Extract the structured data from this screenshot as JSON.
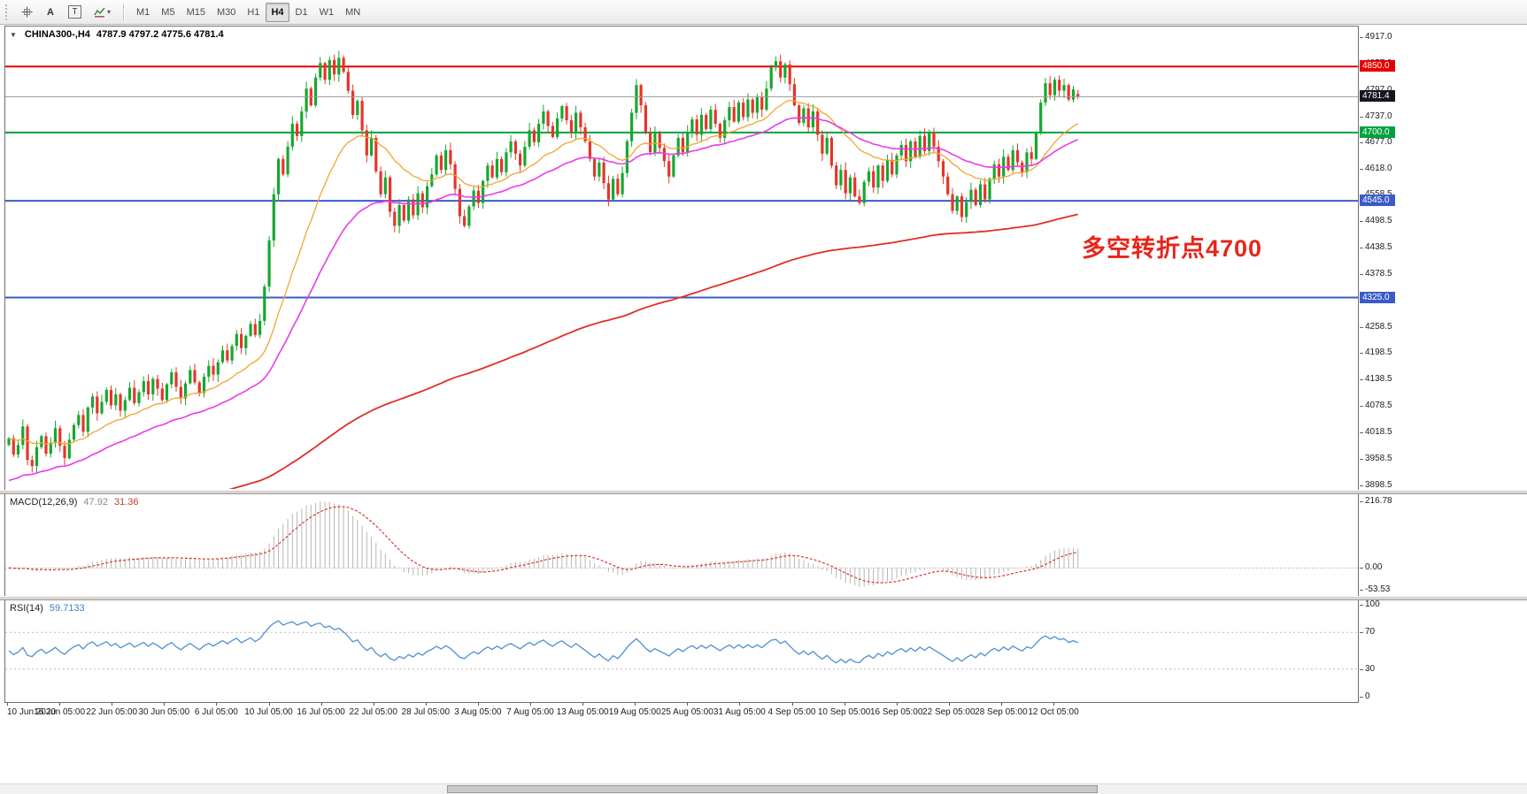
{
  "toolbar": {
    "tools": [
      {
        "name": "crosshair-icon"
      },
      {
        "name": "label-tool",
        "label": "A"
      },
      {
        "name": "text-tool",
        "label": "T"
      },
      {
        "name": "indicators-icon",
        "caret": "▾"
      }
    ],
    "timeframes": [
      "M1",
      "M5",
      "M15",
      "M30",
      "H1",
      "H4",
      "D1",
      "W1",
      "MN"
    ],
    "active_timeframe": "H4"
  },
  "chart": {
    "collapse_arrow": "▼",
    "title_symbol": "CHINA300-,H4",
    "title_ohlc": "4787.9 4797.2 4775.6 4781.4",
    "annotation": {
      "text": "多空转折点4700",
      "color": "#e8251a"
    },
    "price_axis_labels": [
      "4917.0",
      "4857.0",
      "4797.0",
      "4737.0",
      "4677.0",
      "4618.0",
      "4558.5",
      "4498.5",
      "4438.5",
      "4378.5",
      "4318.5",
      "4258.5",
      "4198.5",
      "4138.5",
      "4078.5",
      "4018.5",
      "3958.5",
      "3898.5"
    ],
    "levels": [
      {
        "label": "4850.0",
        "value": 4850.0,
        "color": "#e60000"
      },
      {
        "label": "4700.0",
        "value": 4700.0,
        "color": "#00a23f"
      },
      {
        "label": "4545.0",
        "value": 4545.0,
        "color": "#3a5bc7"
      },
      {
        "label": "4325.0",
        "value": 4325.0,
        "color": "#3a5bc7"
      }
    ],
    "current_price": {
      "label": "4781.4",
      "value": 4781.4,
      "badge_color": "#15151f",
      "line_color": "#9a9a9a"
    },
    "price_range": [
      3890,
      4941
    ],
    "colors": {
      "up": "#17a72e",
      "down": "#e5352b",
      "background": "#ffffff",
      "border": "#6e6e6e"
    }
  },
  "chart_data": {
    "type": "candlestick",
    "symbol": "CHINA300-",
    "timeframe": "H4",
    "first_open": 3990,
    "closes": [
      4005,
      3968,
      3990,
      4032,
      3956,
      3942,
      3985,
      4010,
      3970,
      3995,
      4028,
      3988,
      3960,
      4002,
      4035,
      4058,
      4020,
      4075,
      4100,
      4062,
      4088,
      4115,
      4080,
      4105,
      4068,
      4092,
      4120,
      4085,
      4110,
      4135,
      4105,
      4140,
      4118,
      4092,
      4128,
      4155,
      4122,
      4096,
      4130,
      4160,
      4132,
      4108,
      4145,
      4170,
      4150,
      4178,
      4205,
      4182,
      4215,
      4242,
      4210,
      4238,
      4265,
      4240,
      4272,
      4350,
      4455,
      4560,
      4640,
      4605,
      4668,
      4720,
      4692,
      4748,
      4800,
      4762,
      4825,
      4858,
      4820,
      4865,
      4832,
      4870,
      4838,
      4795,
      4740,
      4772,
      4705,
      4648,
      4688,
      4612,
      4560,
      4598,
      4520,
      4488,
      4535,
      4500,
      4548,
      4512,
      4562,
      4530,
      4578,
      4605,
      4648,
      4615,
      4660,
      4628,
      4572,
      4510,
      4488,
      4532,
      4568,
      4540,
      4590,
      4625,
      4598,
      4640,
      4610,
      4655,
      4680,
      4652,
      4625,
      4668,
      4705,
      4678,
      4720,
      4748,
      4715,
      4690,
      4732,
      4760,
      4728,
      4700,
      4745,
      4712,
      4680,
      4640,
      4600,
      4632,
      4585,
      4548,
      4595,
      4560,
      4608,
      4680,
      4745,
      4808,
      4762,
      4700,
      4655,
      4698,
      4665,
      4635,
      4600,
      4648,
      4688,
      4655,
      4700,
      4730,
      4695,
      4740,
      4708,
      4752,
      4720,
      4688,
      4728,
      4758,
      4725,
      4768,
      4735,
      4775,
      4745,
      4780,
      4752,
      4800,
      4848,
      4862,
      4825,
      4855,
      4810,
      4762,
      4722,
      4755,
      4712,
      4748,
      4695,
      4652,
      4688,
      4625,
      4580,
      4615,
      4562,
      4598,
      4555,
      4540,
      4588,
      4612,
      4575,
      4625,
      4590,
      4638,
      4605,
      4648,
      4672,
      4635,
      4680,
      4645,
      4692,
      4658,
      4700,
      4668,
      4635,
      4600,
      4560,
      4522,
      4555,
      4508,
      4542,
      4570,
      4535,
      4582,
      4548,
      4595,
      4628,
      4600,
      4645,
      4615,
      4660,
      4632,
      4610,
      4655,
      4640,
      4700,
      4768,
      4812,
      4785,
      4820,
      4795,
      4808,
      4775,
      4798,
      4781.4
    ],
    "last_candle": {
      "o": 4787.9,
      "h": 4797.2,
      "l": 4775.6,
      "c": 4781.4
    },
    "x_labels": [
      "10 Jun 2020",
      "16 Jun 05:00",
      "22 Jun 05:00",
      "30 Jun 05:00",
      "6 Jul 05:00",
      "10 Jul 05:00",
      "16 Jul 05:00",
      "22 Jul 05:00",
      "28 Jul 05:00",
      "3 Aug 05:00",
      "7 Aug 05:00",
      "13 Aug 05:00",
      "19 Aug 05:00",
      "25 Aug 05:00",
      "31 Aug 05:00",
      "4 Sep 05:00",
      "10 Sep 05:00",
      "16 Sep 05:00",
      "22 Sep 05:00",
      "28 Sep 05:00",
      "12 Oct 05:00"
    ],
    "moving_averages": [
      {
        "name": "fast",
        "color": "#f2a431"
      },
      {
        "name": "medium",
        "color": "#e83ce8"
      },
      {
        "name": "slow",
        "color": "#df2f26"
      }
    ],
    "indicators": {
      "macd": {
        "label": "MACD(12,26,9)",
        "main_value": "47.92",
        "signal_value": "31.36",
        "axis_max": "216.78",
        "axis_zero": "0.00",
        "axis_min": "-53.53",
        "histogram_color": "#b6b6b6",
        "signal_color": "#d03a30"
      },
      "rsi": {
        "label": "RSI(14)",
        "value": "59.7133",
        "axis_labels": [
          "100",
          "70",
          "30",
          "0"
        ],
        "levels": [
          70,
          30
        ],
        "line_color": "#4f8fd2"
      }
    }
  }
}
